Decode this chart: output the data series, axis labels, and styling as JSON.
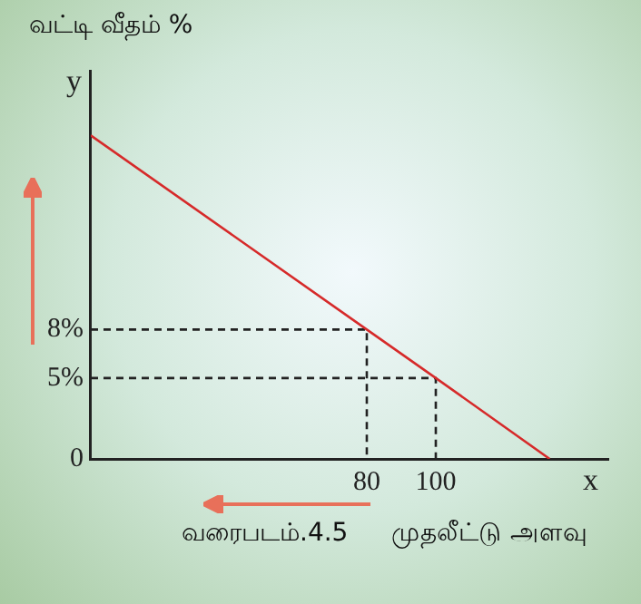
{
  "chart_data": {
    "type": "line",
    "ylabel": "வட்டி வீதம் %",
    "xlabel": "முதலீட்டு அளவு",
    "annotations": [
      "y",
      "x",
      "வரைபடம்.4.5"
    ],
    "series": [
      {
        "color": "#d62a2a",
        "x": [
          0,
          80,
          100,
          133
        ],
        "values": [
          20,
          8,
          5,
          0
        ]
      },
      {
        "color": "#222222",
        "line_style": "dashed",
        "x": [
          0,
          80,
          80
        ],
        "values": [
          8,
          8,
          0
        ]
      },
      {
        "color": "#222222",
        "line_style": "dashed",
        "x": [
          0,
          100,
          100
        ],
        "values": [
          5,
          5,
          0
        ]
      }
    ],
    "xlim": [
      0,
      150
    ],
    "ylim": [
      0,
      24
    ],
    "xticks": [
      80,
      100
    ],
    "yticks": [
      0,
      {
        "value": 5,
        "label": "5%"
      },
      {
        "value": 8,
        "label": "8%"
      }
    ],
    "grid": false,
    "legend": false,
    "marker": "none"
  }
}
